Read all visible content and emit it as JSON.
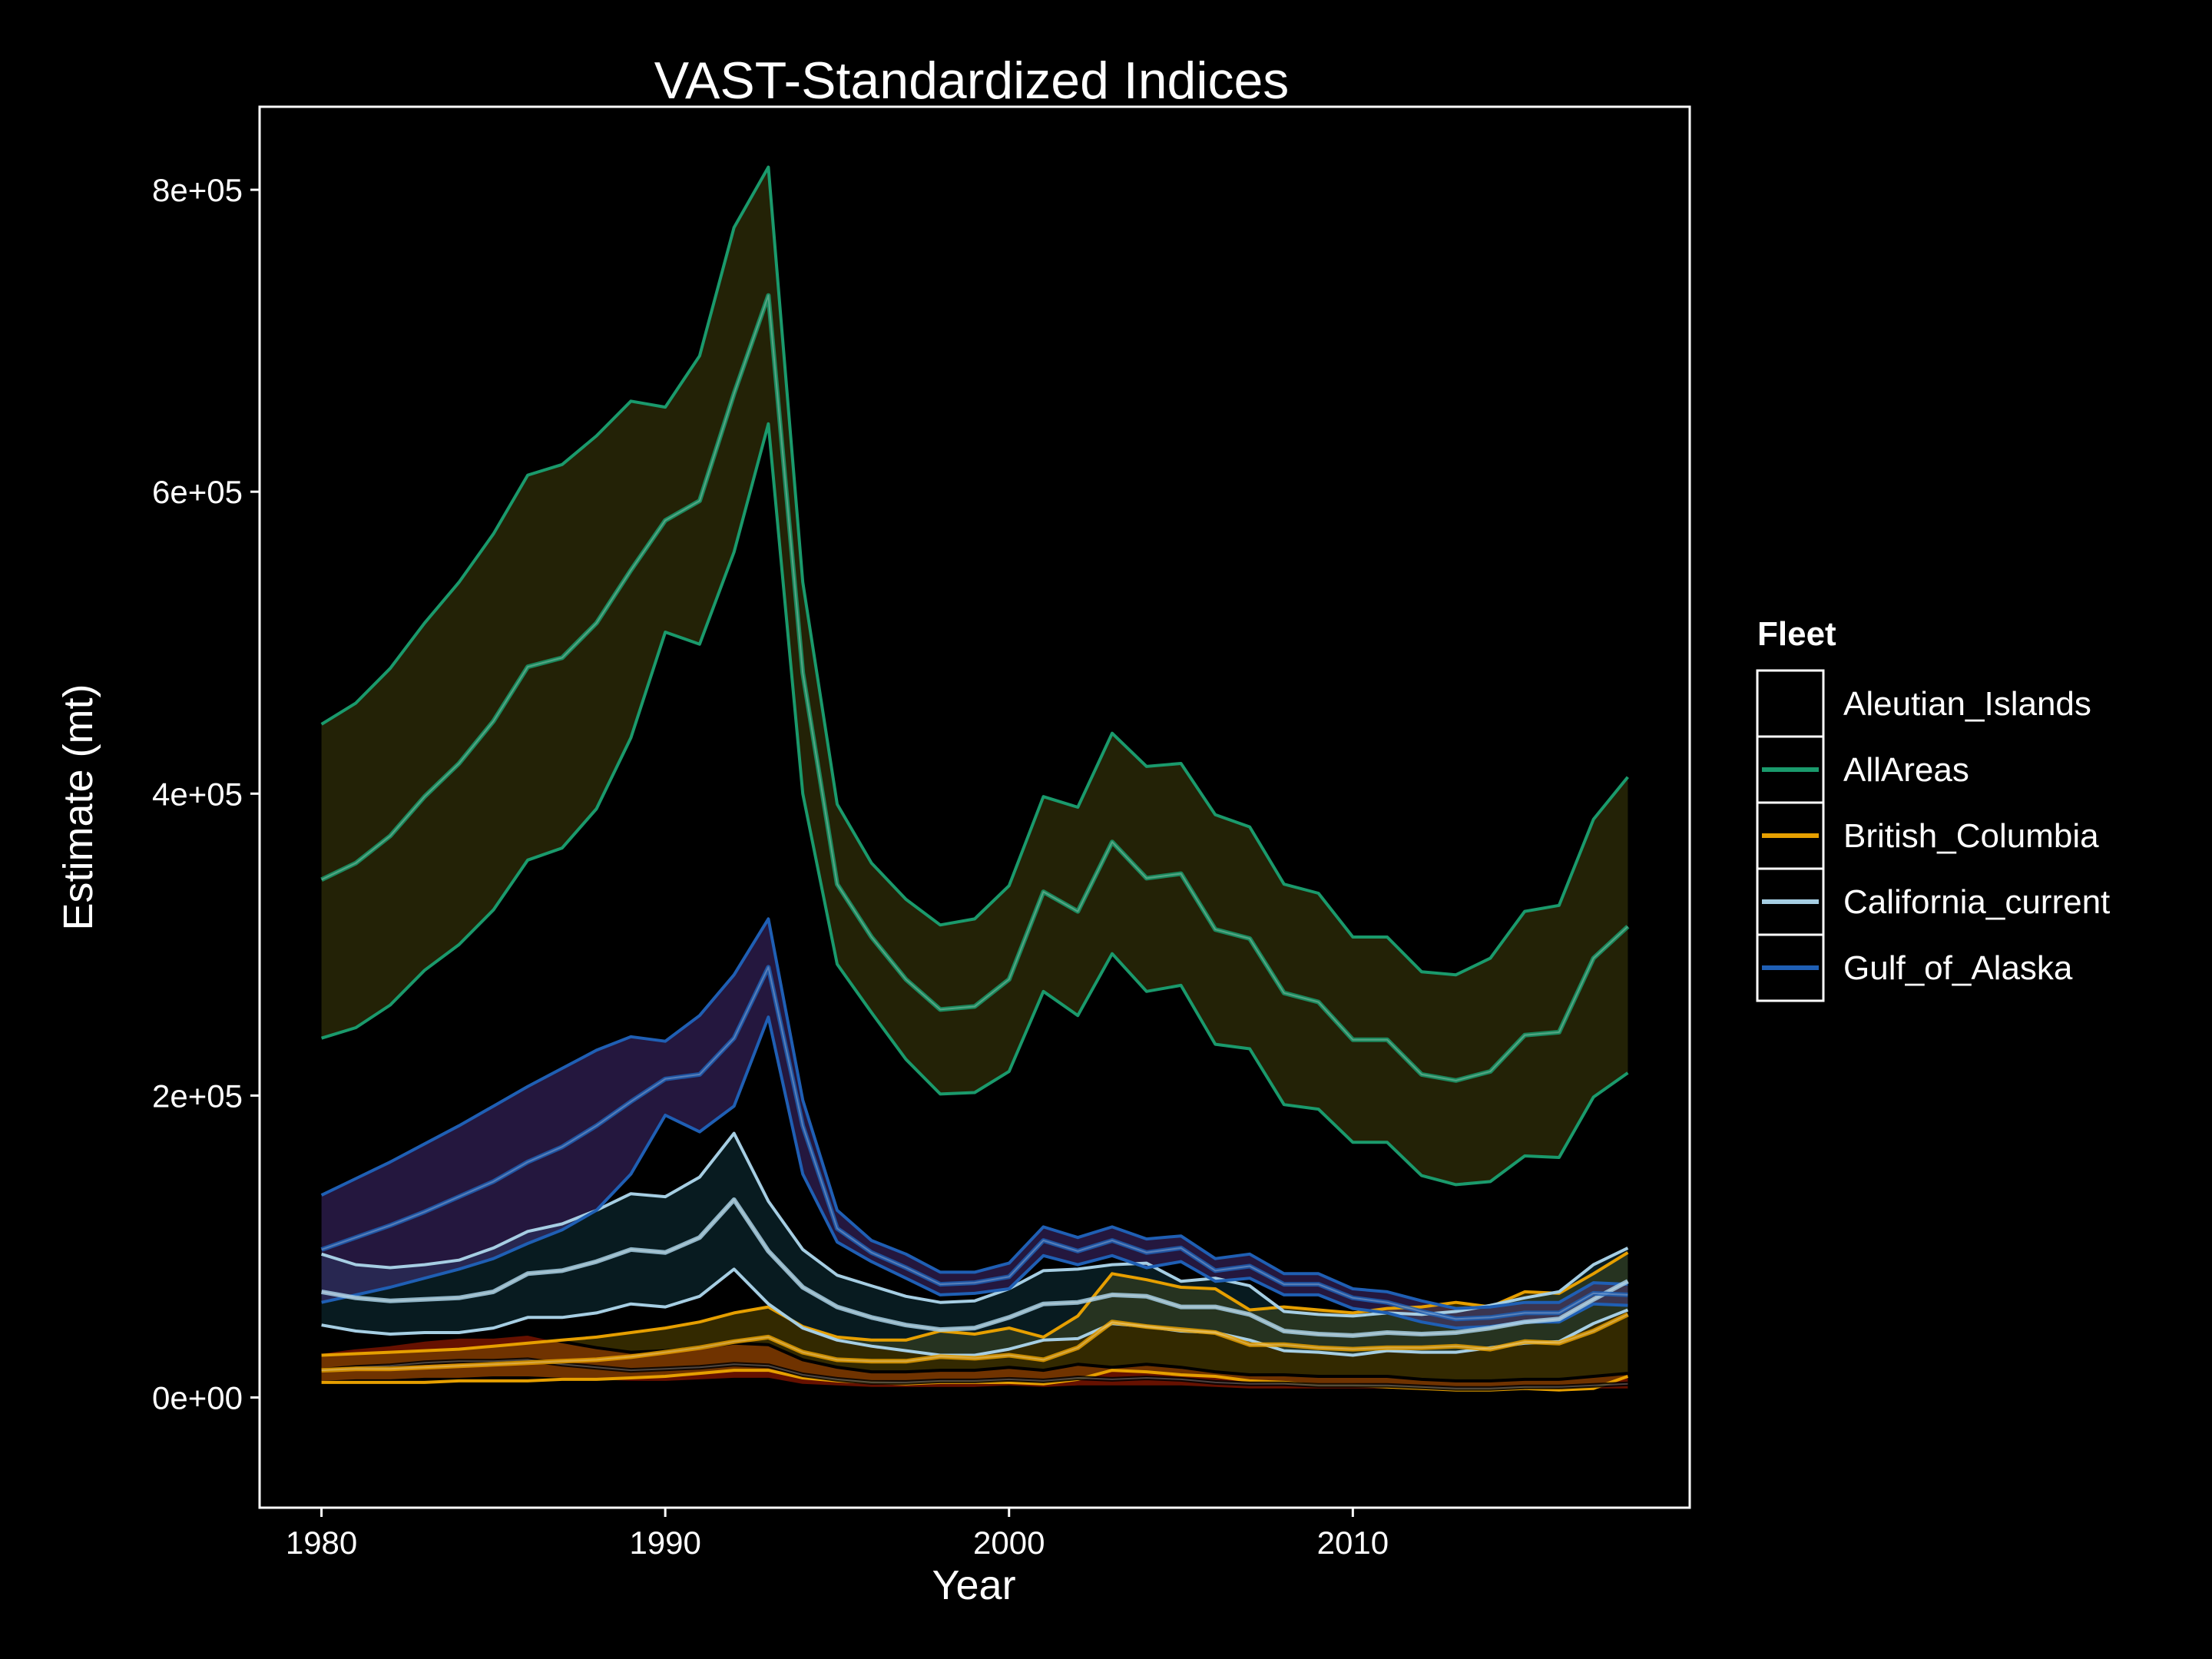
{
  "chart_data": {
    "type": "line",
    "title": "VAST-Standardized Indices",
    "xlabel": "Year",
    "ylabel": "Estimate (mt)",
    "xlim": [
      1978.2,
      2019.8
    ],
    "ylim": [
      -73000,
      855000
    ],
    "x_ticks": [
      1980,
      1990,
      2000,
      2010
    ],
    "x_tick_labels": [
      "1980",
      "1990",
      "2000",
      "2010"
    ],
    "y_ticks": [
      0,
      200000,
      400000,
      600000,
      800000
    ],
    "y_tick_labels": [
      "0e+00",
      "2e+05",
      "4e+05",
      "6e+05",
      "8e+05"
    ],
    "grid": false,
    "background": "#000000",
    "legend": {
      "title": "Fleet",
      "placement": "right",
      "entries": [
        "Aleutian_Islands",
        "AllAreas",
        "British_Columbia",
        "California_current",
        "Gulf_of_Alaska"
      ]
    },
    "x": [
      1980,
      1981,
      1982,
      1983,
      1984,
      1985,
      1986,
      1987,
      1988,
      1989,
      1990,
      1991,
      1992,
      1993,
      1994,
      1995,
      1996,
      1997,
      1998,
      1999,
      2000,
      2001,
      2002,
      2003,
      2004,
      2005,
      2006,
      2007,
      2008,
      2009,
      2010,
      2011,
      2012,
      2013,
      2014,
      2015,
      2016,
      2017,
      2018
    ],
    "series": [
      {
        "name": "Aleutian_Islands",
        "line_color": "#000000",
        "ribbon_color": "#ff2a00",
        "values": [
          18000,
          20000,
          21000,
          23000,
          24000,
          24000,
          25000,
          22000,
          20000,
          18000,
          19000,
          20000,
          22000,
          21000,
          15000,
          12000,
          10000,
          10000,
          11000,
          11000,
          12000,
          11000,
          13000,
          12000,
          13000,
          12000,
          10000,
          9000,
          9000,
          8000,
          8000,
          8000,
          7000,
          6000,
          6000,
          7000,
          7000,
          8000,
          9000
        ],
        "lower": [
          10000,
          11000,
          11000,
          12000,
          12000,
          13000,
          13000,
          12000,
          11000,
          10000,
          10000,
          11000,
          12000,
          12000,
          8000,
          7000,
          6000,
          6000,
          6000,
          6000,
          7000,
          6000,
          7000,
          7000,
          7000,
          7000,
          6000,
          5000,
          5000,
          5000,
          5000,
          5000,
          4000,
          4000,
          4000,
          4000,
          4000,
          5000,
          5000
        ],
        "upper": [
          30000,
          33000,
          35000,
          38000,
          40000,
          40000,
          42000,
          37000,
          33000,
          30000,
          31000,
          33000,
          36000,
          35000,
          25000,
          20000,
          17000,
          17000,
          18000,
          18000,
          20000,
          18000,
          22000,
          20000,
          22000,
          20000,
          17000,
          15000,
          15000,
          14000,
          14000,
          14000,
          12000,
          11000,
          11000,
          12000,
          12000,
          14000,
          16000
        ]
      },
      {
        "name": "AllAreas",
        "line_color": "#1a9a6c",
        "ribbon_color": "#57560e",
        "values": [
          343000,
          354000,
          372000,
          398000,
          420000,
          448000,
          484000,
          490000,
          513000,
          548000,
          581000,
          594000,
          665000,
          730000,
          480000,
          340000,
          305000,
          277000,
          257000,
          259000,
          277000,
          335000,
          322000,
          368000,
          344000,
          347000,
          310000,
          304000,
          268000,
          262000,
          237000,
          237000,
          214000,
          210000,
          216000,
          240000,
          242000,
          291000,
          312000
        ],
        "lower": [
          238000,
          245000,
          260000,
          283000,
          300000,
          323000,
          356000,
          364000,
          390000,
          437000,
          507000,
          499000,
          560000,
          645000,
          400000,
          287000,
          255000,
          224000,
          201000,
          202000,
          216000,
          269000,
          253000,
          294000,
          269000,
          273000,
          234000,
          231000,
          194000,
          191000,
          169000,
          169000,
          147000,
          141000,
          143000,
          160000,
          159000,
          199000,
          215000
        ],
        "upper": [
          446000,
          460000,
          483000,
          513000,
          540000,
          572000,
          611000,
          618000,
          637000,
          660000,
          656000,
          690000,
          775000,
          815000,
          540000,
          393000,
          354000,
          330000,
          313000,
          317000,
          339000,
          398000,
          391000,
          440000,
          418000,
          420000,
          386000,
          378000,
          340000,
          334000,
          305000,
          305000,
          282000,
          280000,
          291000,
          322000,
          326000,
          383000,
          411000
        ]
      },
      {
        "name": "British_Columbia",
        "line_color": "#e69f00",
        "ribbon_color": "#806600",
        "values": [
          18000,
          19000,
          19000,
          20000,
          21000,
          22000,
          23000,
          24000,
          25000,
          27000,
          30000,
          33000,
          37000,
          40000,
          30000,
          25000,
          24000,
          24000,
          27000,
          26000,
          28000,
          25000,
          33000,
          50000,
          47000,
          45000,
          43000,
          35000,
          35000,
          33000,
          32000,
          33000,
          33000,
          34000,
          32000,
          37000,
          36000,
          44000,
          55000
        ],
        "lower": [
          10000,
          10000,
          10000,
          10000,
          11000,
          11000,
          11000,
          12000,
          12000,
          13000,
          14000,
          16000,
          18000,
          18000,
          13000,
          11000,
          10000,
          9000,
          10000,
          10000,
          10000,
          9000,
          12000,
          18000,
          17000,
          15000,
          14000,
          11000,
          10000,
          8000,
          8000,
          7000,
          6000,
          5000,
          5000,
          6000,
          5000,
          6000,
          14000
        ],
        "upper": [
          28000,
          29000,
          30000,
          31000,
          32000,
          34000,
          36000,
          38000,
          40000,
          43000,
          46000,
          50000,
          56000,
          60000,
          47000,
          40000,
          38000,
          38000,
          44000,
          42000,
          46000,
          40000,
          54000,
          82000,
          78000,
          73000,
          72000,
          58000,
          60000,
          58000,
          56000,
          59000,
          60000,
          63000,
          60000,
          70000,
          69000,
          82000,
          96000
        ]
      },
      {
        "name": "California_current",
        "line_color": "#a6cee3",
        "ribbon_color": "#14444f",
        "values": [
          70000,
          66000,
          64000,
          65000,
          66000,
          70000,
          82000,
          84000,
          90000,
          98000,
          96000,
          106000,
          131000,
          97000,
          73000,
          60000,
          53000,
          48000,
          45000,
          46000,
          53000,
          62000,
          63000,
          68000,
          67000,
          60000,
          60000,
          55000,
          44000,
          42000,
          41000,
          43000,
          42000,
          43000,
          46000,
          50000,
          52000,
          65000,
          77000
        ],
        "lower": [
          48000,
          44000,
          42000,
          43000,
          43000,
          46000,
          53000,
          53000,
          56000,
          62000,
          60000,
          67000,
          85000,
          62000,
          46000,
          38000,
          34000,
          31000,
          28000,
          28000,
          32000,
          38000,
          39000,
          49000,
          47000,
          44000,
          43000,
          38000,
          31000,
          30000,
          28000,
          31000,
          30000,
          30000,
          33000,
          36000,
          37000,
          49000,
          58000
        ],
        "upper": [
          95000,
          88000,
          86000,
          88000,
          91000,
          99000,
          110000,
          115000,
          124000,
          135000,
          133000,
          146000,
          175000,
          130000,
          98000,
          81000,
          74000,
          67000,
          63000,
          64000,
          72000,
          84000,
          85000,
          88000,
          89000,
          77000,
          79000,
          74000,
          57000,
          55000,
          54000,
          56000,
          55000,
          57000,
          61000,
          66000,
          70000,
          88000,
          99000
        ]
      },
      {
        "name": "Gulf_of_Alaska",
        "line_color": "#1f5fb4",
        "ribbon_color": "#5a3a9a",
        "values": [
          98000,
          106000,
          114000,
          123000,
          133000,
          143000,
          156000,
          166000,
          180000,
          196000,
          211000,
          214000,
          238000,
          285000,
          180000,
          112000,
          96000,
          86000,
          75000,
          76000,
          80000,
          104000,
          97000,
          104000,
          96000,
          99000,
          84000,
          87000,
          75000,
          75000,
          66000,
          63000,
          57000,
          52000,
          53000,
          56000,
          56000,
          69000,
          68000
        ],
        "lower": [
          63000,
          68000,
          73000,
          79000,
          85000,
          92000,
          102000,
          111000,
          124000,
          148000,
          187000,
          176000,
          193000,
          252000,
          148000,
          103000,
          90000,
          79000,
          68000,
          69000,
          72000,
          94000,
          88000,
          94000,
          86000,
          90000,
          77000,
          79000,
          68000,
          68000,
          59000,
          56000,
          50000,
          46000,
          47000,
          50000,
          50000,
          62000,
          61000
        ],
        "upper": [
          134000,
          145000,
          156000,
          168000,
          180000,
          193000,
          206000,
          218000,
          230000,
          239000,
          236000,
          253000,
          280000,
          317000,
          197000,
          124000,
          104000,
          95000,
          83000,
          83000,
          89000,
          113000,
          106000,
          113000,
          105000,
          107000,
          92000,
          95000,
          82000,
          82000,
          72000,
          70000,
          64000,
          59000,
          60000,
          63000,
          63000,
          76000,
          75000
        ]
      }
    ]
  }
}
